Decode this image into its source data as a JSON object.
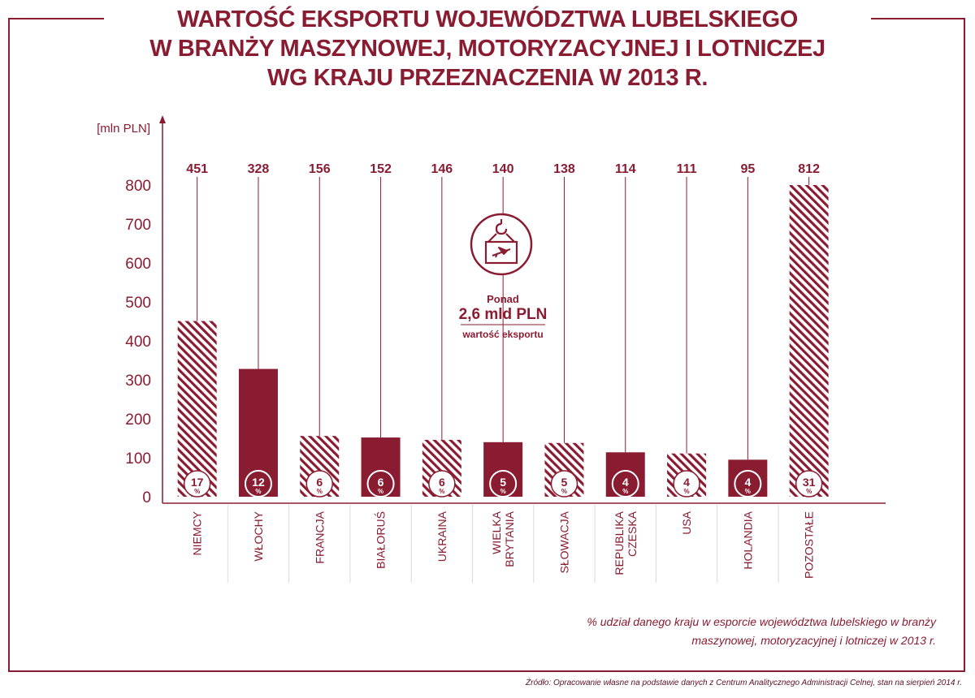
{
  "title": {
    "line1": "WARTOŚĆ EKSPORTU WOJEWÓDZTWA LUBELSKIEGO",
    "line2": "W BRANŻY MASZYNOWEJ, MOTORYZACYJNEJ I LOTNICZEJ",
    "line3": "WG KRAJU PRZEZNACZENIA W 2013 R."
  },
  "callout": {
    "line1": "Ponad",
    "line2": "2,6 mld PLN",
    "line3": "wartość eksportu",
    "icon": "crane-hook-cargo-plane-icon"
  },
  "note": {
    "line1": "% udział danego kraju w esporcie województwa lubelskiego w branży",
    "line2": "maszynowej, motoryzacyjnej i lotniczej w 2013 r."
  },
  "source": "Źródło: Opracowanie własne na podstawie danych z Centrum Analitycznego Administracji Celnej, stan na sierpień 2014 r.",
  "colors": {
    "accent": "#8a1c32",
    "grid": "#d9d9d9",
    "background": "#ffffff"
  },
  "chart_data": {
    "type": "bar",
    "ylabel": "[mln PLN]",
    "ylim": [
      0,
      800
    ],
    "yticks": [
      0,
      100,
      200,
      300,
      400,
      500,
      600,
      700,
      800
    ],
    "grid": false,
    "categories": [
      [
        "NIEMCY"
      ],
      [
        "WŁOCHY"
      ],
      [
        "FRANCJA"
      ],
      [
        "BIAŁORUŚ"
      ],
      [
        "UKRAINA"
      ],
      [
        "WIELKA",
        "BRYTANIA"
      ],
      [
        "SŁOWACJA"
      ],
      [
        "REPUBLIKA",
        "CZESKA"
      ],
      [
        "USA"
      ],
      [
        "HOLANDIA"
      ],
      [
        "POZOSTAŁE"
      ]
    ],
    "values": [
      451,
      328,
      156,
      152,
      146,
      140,
      138,
      114,
      111,
      95,
      812
    ],
    "shares_percent": [
      17,
      12,
      6,
      6,
      6,
      5,
      5,
      4,
      4,
      4,
      31
    ],
    "percent_symbol": "%",
    "bar_styles": [
      "hatched",
      "solid",
      "hatched",
      "solid",
      "hatched",
      "solid",
      "hatched",
      "solid",
      "hatched",
      "solid",
      "hatched"
    ]
  }
}
